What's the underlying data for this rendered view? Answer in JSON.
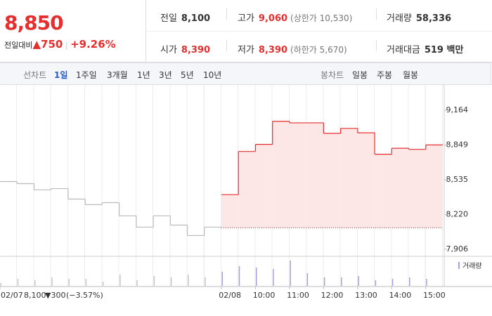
{
  "header": {
    "price": "8,850",
    "change_label": "전일대비",
    "change": "▲750",
    "rate": "+9.26%"
  },
  "info": [
    [
      {
        "label": "전일",
        "value": "8,100"
      },
      {
        "label": "고가",
        "value": "9,060",
        "note": "(상한가 10,530)"
      },
      {
        "label": "거래량",
        "value": "58,336"
      }
    ],
    [
      {
        "label": "시가",
        "value": "8,390"
      },
      {
        "label": "저가",
        "value": "8,390",
        "note": "(하한가 5,670)"
      },
      {
        "label": "거래대금",
        "value": "519 백만"
      }
    ]
  ],
  "tabs": {
    "line_label": "선차트",
    "line": [
      "1일",
      "1주일",
      "3개월",
      "1년",
      "3년",
      "5년",
      "10년"
    ],
    "candle_label": "봉차트",
    "candle": [
      "일봉",
      "주봉",
      "월봉"
    ]
  },
  "chart_data": {
    "type": "step",
    "categories": [
      "02/07",
      null,
      null,
      null,
      null,
      null,
      null,
      null,
      null,
      null,
      null,
      null,
      null,
      "02/08",
      null,
      "10:00",
      null,
      "11:00",
      null,
      "12:00",
      null,
      "13:00",
      null,
      "14:00",
      null,
      "15:00"
    ],
    "series": [
      {
        "color": "#bbbbbb",
        "values": [
          8519,
          8500,
          8443,
          8455,
          8360,
          8310,
          8328,
          8208,
          8106,
          8208,
          8125,
          8030,
          8106,
          null,
          null,
          null,
          null,
          null,
          null,
          null,
          null,
          null,
          null,
          null,
          null,
          null
        ]
      },
      {
        "color": "#e52e2e",
        "fill": "#fde6e6",
        "values": [
          null,
          null,
          null,
          null,
          null,
          null,
          null,
          null,
          null,
          null,
          null,
          null,
          null,
          8400,
          8791,
          8855,
          9064,
          9050,
          9050,
          8955,
          9000,
          8960,
          8766,
          8820,
          8810,
          8850
        ]
      }
    ],
    "baseline": 8100,
    "ylim": [
      7842,
      9272
    ],
    "yticks": [
      {
        "value": 9164,
        "label": "9,164"
      },
      {
        "value": 8849,
        "label": "8,849"
      },
      {
        "value": 8535,
        "label": "8,535"
      },
      {
        "value": 8220,
        "label": "8,220"
      },
      {
        "value": 7906,
        "label": "7,906"
      }
    ],
    "volume": {
      "name": "거래량",
      "color": "#a99ed4",
      "ylim": [
        0,
        40
      ],
      "values": [
        4,
        10,
        8,
        12,
        10,
        10,
        6,
        16,
        8,
        14,
        12,
        16,
        12,
        20,
        28,
        26,
        24,
        36,
        18,
        12,
        12,
        14,
        8,
        10,
        12,
        10
      ]
    },
    "prev_summary": {
      "close": "8,100",
      "change": "▼300",
      "rate": "(−3.57%)"
    }
  }
}
